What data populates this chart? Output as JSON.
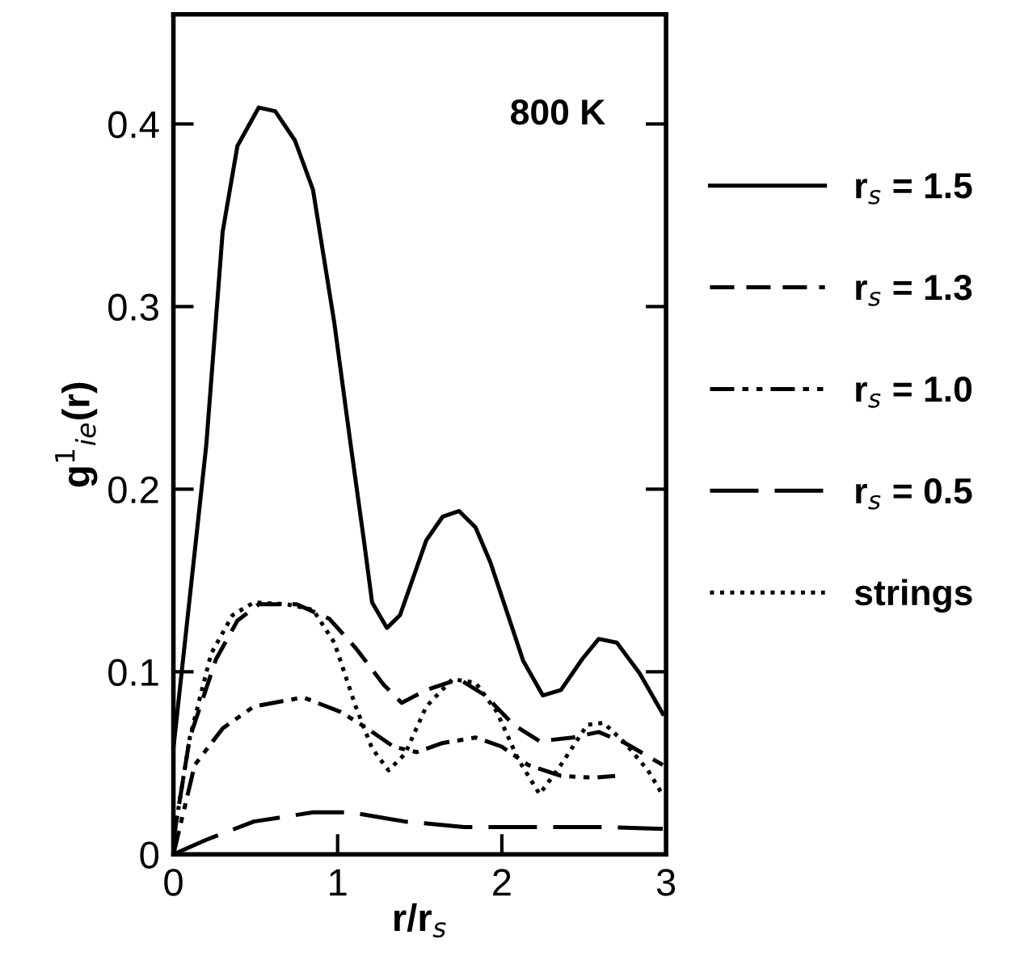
{
  "chart_data": {
    "type": "line",
    "xlabel": "r/r$_{s}$",
    "ylabel": "g$^{1}$$_{ie}$(r)",
    "annotations": [
      "800 K"
    ],
    "xlim": [
      0,
      3
    ],
    "xticks": [
      0,
      1,
      2,
      3
    ],
    "ylim": [
      0,
      0.46
    ],
    "yticks": [
      0,
      {
        "value": 0.1,
        "label": "0.1"
      },
      {
        "value": 0.2,
        "label": "0.2"
      },
      {
        "value": 0.3,
        "label": "0.3"
      },
      {
        "value": 0.4,
        "label": "0.4"
      }
    ],
    "legend": "right",
    "grid": false,
    "series": [
      {
        "name": "r$_{s}$ = 1.5",
        "color": "#000000",
        "line_style": "solid",
        "x": [
          0,
          0.2,
          0.3,
          0.39,
          0.52,
          0.62,
          0.74,
          0.85,
          0.98,
          1.08,
          1.16,
          1.21,
          1.3,
          1.38,
          1.54,
          1.64,
          1.74,
          1.84,
          1.93,
          2.13,
          2.25,
          2.36,
          2.49,
          2.59,
          2.7,
          2.84,
          2.98
        ],
        "values": [
          0.058,
          0.224,
          0.341,
          0.388,
          0.409,
          0.407,
          0.391,
          0.364,
          0.291,
          0.224,
          0.172,
          0.138,
          0.124,
          0.131,
          0.172,
          0.185,
          0.188,
          0.179,
          0.16,
          0.106,
          0.087,
          0.09,
          0.107,
          0.118,
          0.116,
          0.099,
          0.077
        ]
      },
      {
        "name": "r$_{s}$ = 1.3",
        "color": "#000000",
        "line_style": "dashed",
        "x": [
          0,
          0.1,
          0.26,
          0.39,
          0.52,
          0.75,
          0.95,
          1.11,
          1.28,
          1.39,
          1.54,
          1.74,
          1.9,
          2.07,
          2.23,
          2.43,
          2.59,
          2.75,
          2.98
        ],
        "values": [
          0.008,
          0.064,
          0.107,
          0.128,
          0.137,
          0.137,
          0.129,
          0.113,
          0.093,
          0.083,
          0.09,
          0.096,
          0.087,
          0.071,
          0.062,
          0.064,
          0.067,
          0.061,
          0.049
        ]
      },
      {
        "name": "r$_{s}$ = 1.0",
        "color": "#000000",
        "line_style": "dashdot",
        "x": [
          0,
          0.13,
          0.3,
          0.49,
          0.79,
          1.02,
          1.18,
          1.34,
          1.48,
          1.64,
          1.84,
          2.0,
          2.16,
          2.36,
          2.56,
          2.69
        ],
        "values": [
          0,
          0.049,
          0.069,
          0.081,
          0.086,
          0.078,
          0.069,
          0.059,
          0.056,
          0.061,
          0.064,
          0.059,
          0.049,
          0.043,
          0.042,
          0.043
        ]
      },
      {
        "name": "r$_{s}$ = 0.5",
        "color": "#000000",
        "line_style": "longdash",
        "x": [
          0,
          0.2,
          0.49,
          0.85,
          1.08,
          1.41,
          1.77,
          2.23,
          2.62,
          2.98
        ],
        "values": [
          0,
          0.008,
          0.018,
          0.023,
          0.023,
          0.018,
          0.015,
          0.015,
          0.015,
          0.014
        ]
      },
      {
        "name": "strings",
        "color": "#000000",
        "line_style": "dotted",
        "x": [
          0,
          0.1,
          0.23,
          0.36,
          0.49,
          0.69,
          0.85,
          0.98,
          1.11,
          1.21,
          1.31,
          1.41,
          1.54,
          1.7,
          1.84,
          1.97,
          2.1,
          2.23,
          2.36,
          2.52,
          2.62,
          2.75,
          2.89,
          2.97
        ],
        "values": [
          0.008,
          0.064,
          0.11,
          0.131,
          0.138,
          0.137,
          0.134,
          0.116,
          0.081,
          0.058,
          0.046,
          0.055,
          0.081,
          0.096,
          0.094,
          0.078,
          0.052,
          0.033,
          0.049,
          0.071,
          0.072,
          0.061,
          0.046,
          0.034
        ]
      }
    ]
  }
}
